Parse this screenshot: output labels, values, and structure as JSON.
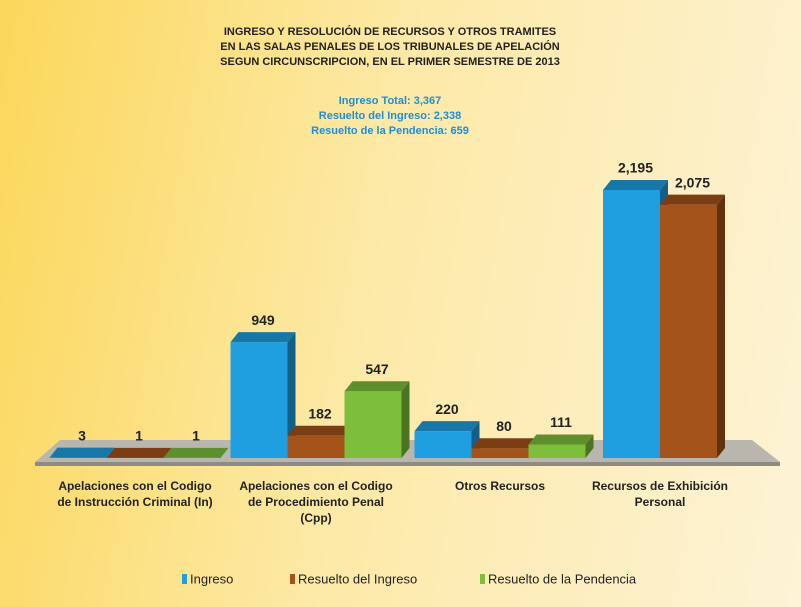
{
  "chart_data": {
    "type": "bar",
    "title": [
      "INGRESO Y RESOLUCIÓN DE RECURSOS Y OTROS TRAMITES",
      "EN LAS SALAS PENALES DE LOS TRIBUNALES DE APELACIÓN",
      "SEGUN CIRCUNSCRIPCION, EN EL PRIMER SEMESTRE DE 2013"
    ],
    "annotations": [
      "Ingreso Total: 3,367",
      "Resuelto del Ingreso: 2,338",
      "Resuelto de la Pendencia: 659"
    ],
    "categories": [
      "Apelaciones con el Codigo de Instrucción Criminal (In)",
      "Apelaciones con el Codigo de Procedimiento Penal (Cpp)",
      "Otros Recursos",
      "Recursos de Exhibición Personal"
    ],
    "series": [
      {
        "name": "Ingreso",
        "color": "#1f9fe0",
        "values": [
          3,
          949,
          220,
          2195
        ],
        "value_labels": [
          "3",
          "949",
          "220",
          "2,195"
        ]
      },
      {
        "name": "Resuelto del Ingreso",
        "color": "#a4531b",
        "values": [
          1,
          182,
          80,
          2075
        ],
        "value_labels": [
          "1",
          "182",
          "80",
          "2,075"
        ]
      },
      {
        "name": "Resuelto de la Pendencia",
        "color": "#7dbf3c",
        "values": [
          1,
          547,
          111,
          null
        ],
        "value_labels": [
          "1",
          "547",
          "111",
          null
        ]
      }
    ],
    "legend": "bottom"
  }
}
